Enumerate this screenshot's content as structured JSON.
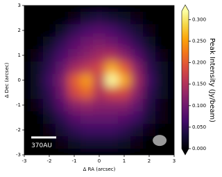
{
  "chart_data": {
    "type": "heatmap",
    "xlabel": "Δ RA (arcsec)",
    "ylabel": "Δ Dec (arcsec)",
    "colorbar_label": "Peak Intensity (Jy/beam)",
    "colormap": "inferno",
    "x": [
      -3,
      -2.5,
      -2,
      -1.5,
      -1,
      -0.5,
      0,
      0.5,
      1,
      1.5,
      2,
      2.5,
      3
    ],
    "y": [
      3,
      2.5,
      2,
      1.5,
      1,
      0.5,
      0,
      -0.5,
      -1,
      -1.5,
      -2,
      -2.5,
      -3
    ],
    "values": [
      [
        0,
        0,
        0,
        0,
        0,
        0,
        0,
        0,
        0,
        0,
        0,
        0,
        0
      ],
      [
        0,
        0,
        0,
        0,
        0.01,
        0.03,
        0.04,
        0.03,
        0.02,
        0.01,
        0,
        0,
        0
      ],
      [
        0,
        0,
        0,
        0.02,
        0.05,
        0.07,
        0.08,
        0.07,
        0.05,
        0.03,
        0.01,
        0,
        0
      ],
      [
        0,
        0,
        0.02,
        0.05,
        0.08,
        0.1,
        0.11,
        0.1,
        0.08,
        0.05,
        0.02,
        0,
        0
      ],
      [
        0,
        0.01,
        0.04,
        0.07,
        0.1,
        0.12,
        0.14,
        0.15,
        0.12,
        0.08,
        0.04,
        0.01,
        0
      ],
      [
        0,
        0.02,
        0.05,
        0.09,
        0.14,
        0.16,
        0.18,
        0.26,
        0.2,
        0.12,
        0.05,
        0.02,
        0
      ],
      [
        0,
        0.02,
        0.06,
        0.11,
        0.2,
        0.25,
        0.16,
        0.32,
        0.26,
        0.14,
        0.06,
        0.02,
        0
      ],
      [
        0,
        0.02,
        0.05,
        0.1,
        0.18,
        0.21,
        0.15,
        0.18,
        0.18,
        0.12,
        0.05,
        0.02,
        0
      ],
      [
        0,
        0.01,
        0.04,
        0.08,
        0.12,
        0.13,
        0.12,
        0.12,
        0.12,
        0.09,
        0.04,
        0.01,
        0
      ],
      [
        0,
        0,
        0.02,
        0.05,
        0.08,
        0.09,
        0.09,
        0.09,
        0.08,
        0.06,
        0.03,
        0.01,
        0
      ],
      [
        0,
        0,
        0.01,
        0.03,
        0.05,
        0.06,
        0.06,
        0.06,
        0.05,
        0.03,
        0.01,
        0,
        0
      ],
      [
        0,
        0,
        0,
        0.01,
        0.02,
        0.03,
        0.03,
        0.03,
        0.02,
        0.01,
        0,
        0,
        0
      ],
      [
        0,
        0,
        0,
        0,
        0,
        0,
        0,
        0,
        0,
        0,
        0,
        0,
        0
      ]
    ],
    "xlim": [
      -3,
      3
    ],
    "ylim": [
      -3,
      3
    ],
    "clim": [
      0,
      0.32
    ],
    "xticks": [
      -3,
      -2,
      -1,
      0,
      1,
      2,
      3
    ],
    "yticks": [
      -3,
      -2,
      -1,
      0,
      1,
      2,
      3
    ],
    "cticks": [
      {
        "value": 0,
        "label": "0.000"
      },
      {
        "value": 0.05,
        "label": "0.050"
      },
      {
        "value": 0.1,
        "label": "0.100"
      },
      {
        "value": 0.15,
        "label": "0.150"
      },
      {
        "value": 0.2,
        "label": "0.200"
      },
      {
        "value": 0.25,
        "label": "0.250"
      },
      {
        "value": 0.3,
        "label": "0.300"
      }
    ],
    "scale_bar_label": "370AU"
  }
}
